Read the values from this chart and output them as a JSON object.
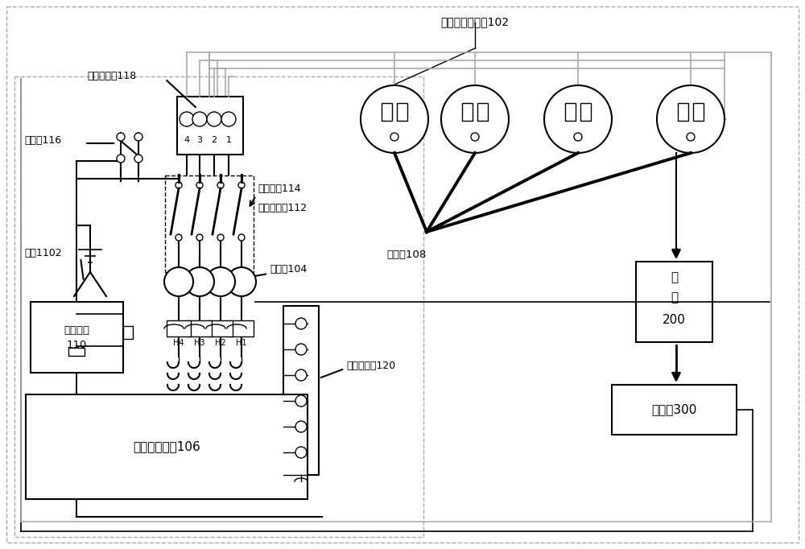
{
  "bg_color": "#ffffff",
  "lc": "#000000",
  "gc": "#aaaaaa",
  "figsize": [
    10.0,
    6.82
  ],
  "dpi": 100,
  "labels": {
    "ev_port": "电动车充电端口102",
    "id_code": "标识码108",
    "terminal_top": "终",
    "terminal_mid": "端",
    "terminal_num": "200",
    "server": "服务器300",
    "main_switch": "总开关116",
    "antenna": "天线1102",
    "comm_module_1": "通信模块",
    "comm_module_2": "110",
    "first_socket": "第一接线座118",
    "air_switch": "空气开关114",
    "leakage": "漏电保护器112",
    "transformer": "互感器104",
    "central": "中控系统模块106",
    "second_socket": "第二接线座120"
  }
}
